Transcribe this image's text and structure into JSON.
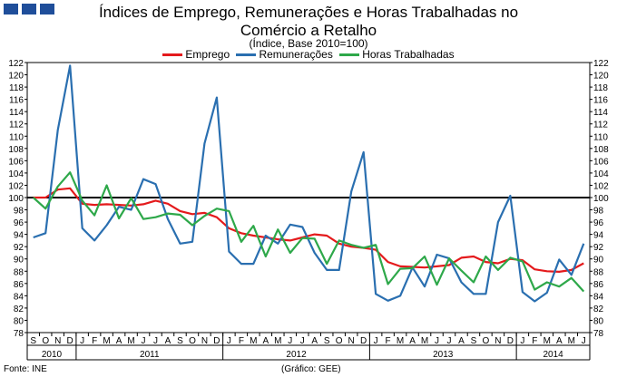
{
  "chart_data": {
    "type": "line",
    "title": "Índices de Emprego, Remunerações e Horas Trabalhadas no Comércio a Retalho",
    "subtitle": "(Índice, Base 2010=100)",
    "ylim": [
      78,
      122
    ],
    "ytick_step": 2,
    "reference_line": 100,
    "month_labels": [
      "S",
      "O",
      "N",
      "D",
      "J",
      "F",
      "M",
      "A",
      "M",
      "J",
      "J",
      "A",
      "S",
      "O",
      "N",
      "D",
      "J",
      "F",
      "M",
      "A",
      "M",
      "J",
      "J",
      "A",
      "S",
      "O",
      "N",
      "D",
      "J",
      "F",
      "M",
      "A",
      "M",
      "J",
      "J",
      "A",
      "S",
      "O",
      "N",
      "D",
      "J",
      "F",
      "M",
      "A",
      "M",
      "J"
    ],
    "years": [
      {
        "label": "2010",
        "start": 0,
        "count": 4
      },
      {
        "label": "2011",
        "start": 4,
        "count": 12
      },
      {
        "label": "2012",
        "start": 16,
        "count": 12
      },
      {
        "label": "2013",
        "start": 28,
        "count": 12
      },
      {
        "label": "2014",
        "start": 40,
        "count": 6
      }
    ],
    "series": [
      {
        "name": "Emprego",
        "color": "#e41a1c",
        "values": [
          100,
          100,
          101.3,
          101.5,
          99,
          98.8,
          98.9,
          98.8,
          98.7,
          98.9,
          99.5,
          99,
          97.8,
          97.3,
          97.5,
          96.8,
          95,
          94.2,
          93.8,
          93.5,
          93.2,
          93,
          93.5,
          94,
          93.8,
          92.5,
          92,
          91.8,
          91.5,
          89.5,
          88.8,
          88.7,
          88.6,
          88.8,
          89,
          90.2,
          90.4,
          89.5,
          89.3,
          90,
          89.8,
          88.3,
          88,
          87.9,
          88.2,
          89.3
        ]
      },
      {
        "name": "Remunerações",
        "color": "#2a6fb0",
        "values": [
          93.5,
          94.2,
          111,
          121.5,
          95,
          93,
          95.5,
          98.5,
          98,
          103,
          102.2,
          96.5,
          92.5,
          92.8,
          108.8,
          116.3,
          91.2,
          89.2,
          89.2,
          93.8,
          92.5,
          95.6,
          95.2,
          91,
          88.2,
          88.2,
          101,
          107.4,
          84.3,
          83.2,
          84,
          88.6,
          85.5,
          90.7,
          90.1,
          86.2,
          84.3,
          84.3,
          96,
          100.3,
          84.6,
          83.1,
          84.5,
          89.9,
          87.4,
          92.5
        ]
      },
      {
        "name": "Horas Trabalhadas",
        "color": "#2ea84a",
        "values": [
          100,
          98.2,
          101.8,
          104.1,
          99.5,
          97.1,
          102,
          96.6,
          99.9,
          96.5,
          96.8,
          97.4,
          97.2,
          95.5,
          97,
          98.2,
          97.8,
          92.8,
          95.4,
          90.4,
          94.8,
          91,
          93.4,
          93.3,
          89.2,
          93,
          92.3,
          91.8,
          92.3,
          85.9,
          88.4,
          88.5,
          90.4,
          85.8,
          90.1,
          88.1,
          86.2,
          90.4,
          88.2,
          90.2,
          89.6,
          85,
          86.2,
          85.5,
          86.9,
          84.7
        ]
      }
    ]
  },
  "footer": {
    "source": "Fonte: INE",
    "graph_label": "(Gráfico: GEE)"
  }
}
